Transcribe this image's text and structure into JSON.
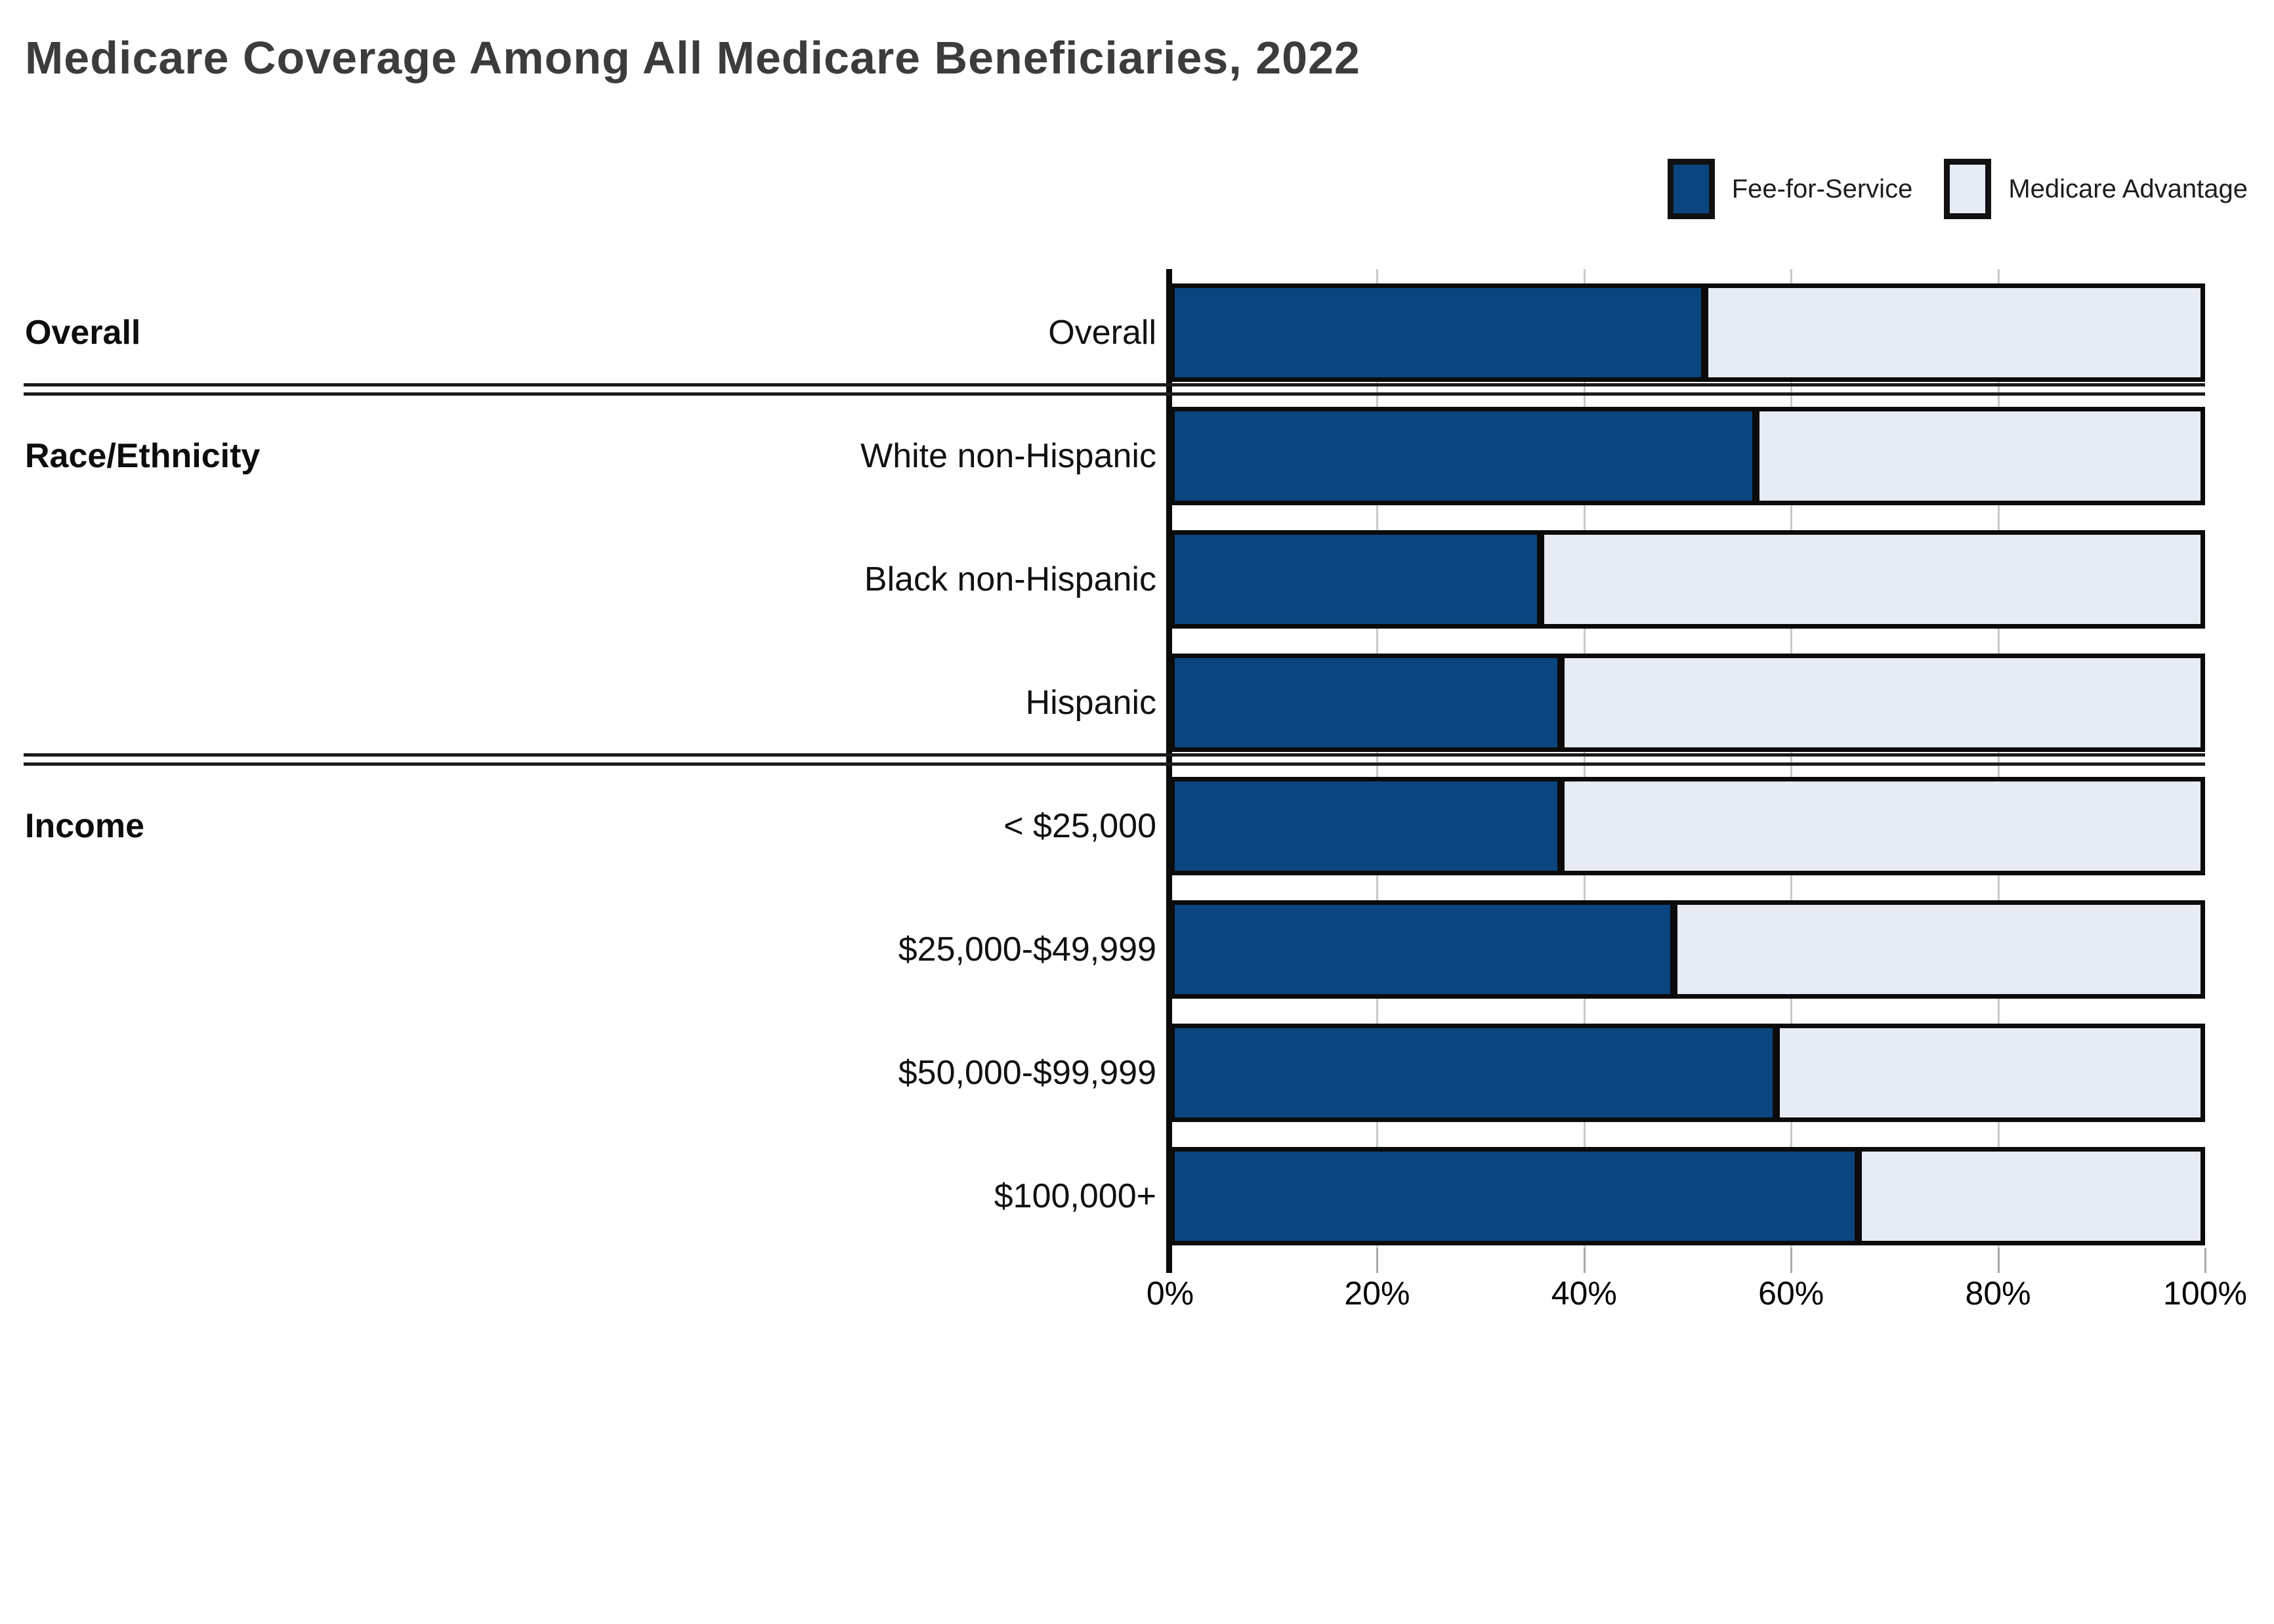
{
  "page": {
    "title": "Medicare Coverage Among All Medicare Beneficiaries, 2022"
  },
  "legend": {
    "items": [
      {
        "label": "Fee-for-Service",
        "color": "#0B4580"
      },
      {
        "label": "Medicare Advantage",
        "color": "#E7EBF4"
      }
    ]
  },
  "chart_data": {
    "type": "bar",
    "orientation": "horizontal",
    "stacked": true,
    "title": "Medicare Coverage Among All Medicare Beneficiaries, 2022",
    "categories": [
      "Overall",
      "White non-Hispanic",
      "Black non-Hispanic",
      "Hispanic",
      "< $25,000",
      "$25,000-$49,999",
      "$50,000-$99,999",
      "$100,000+"
    ],
    "series": [
      {
        "name": "Fee-for-Service",
        "color": "#0B4580",
        "values": [
          52,
          57,
          36,
          38,
          38,
          49,
          59,
          67
        ]
      },
      {
        "name": "Medicare Advantage",
        "color": "#E7EBF4",
        "values": [
          48,
          43,
          64,
          62,
          62,
          51,
          41,
          33
        ]
      }
    ],
    "row_groups": [
      {
        "label": "Overall",
        "start_row": 0,
        "row_count": 1
      },
      {
        "label": "Race/Ethnicity",
        "start_row": 1,
        "row_count": 3
      },
      {
        "label": "Income",
        "start_row": 4,
        "row_count": 4
      }
    ],
    "x_axis": {
      "min": 0,
      "max": 100,
      "unit": "%",
      "tick_labels": [
        "0%",
        "20%",
        "40%",
        "60%",
        "80%",
        "100%"
      ]
    },
    "grid": true,
    "legend_position": "top-right",
    "colors": {
      "fee_for_service": "#0B4580",
      "medicare_advantage": "#E7EBF4",
      "bar_border": "#0B0B0B",
      "gridline": "#C9C9C9",
      "separator": "#1B1B1B",
      "title_text": "#3C3C3C",
      "label_text": "#111111"
    }
  }
}
